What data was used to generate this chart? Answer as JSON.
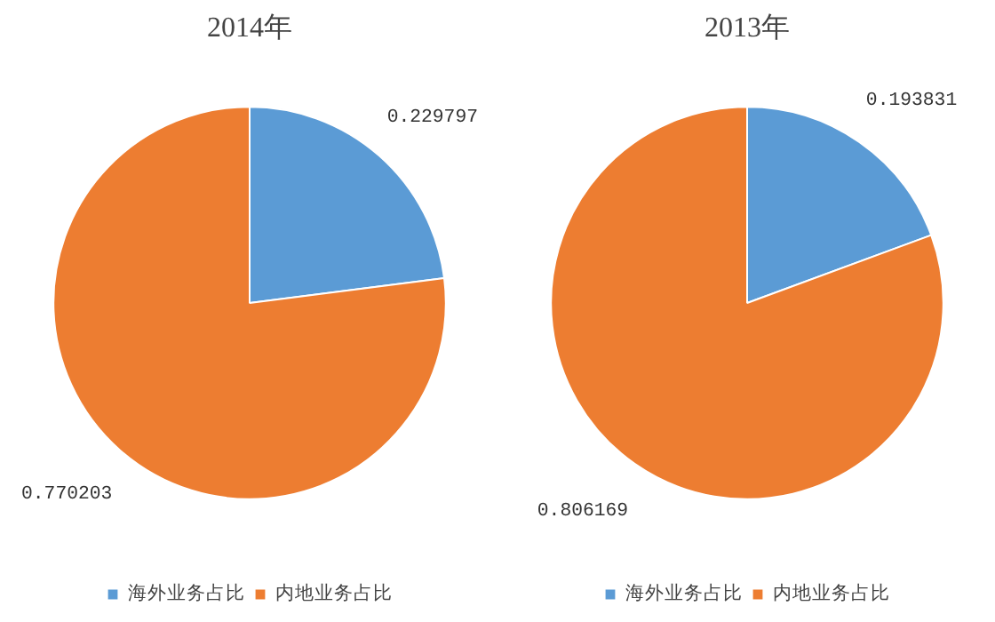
{
  "chart_data": [
    {
      "type": "pie",
      "title": "2014年",
      "categories": [
        "海外业务占比",
        "内地业务占比"
      ],
      "values": [
        0.229797,
        0.770203
      ],
      "colors": [
        "#5b9bd5",
        "#ed7d31"
      ],
      "data_labels": true,
      "legend": "bottom"
    },
    {
      "type": "pie",
      "title": "2013年",
      "categories": [
        "海外业务占比",
        "内地业务占比"
      ],
      "values": [
        0.193831,
        0.806169
      ],
      "colors": [
        "#5b9bd5",
        "#ed7d31"
      ],
      "data_labels": true,
      "legend": "bottom"
    }
  ]
}
